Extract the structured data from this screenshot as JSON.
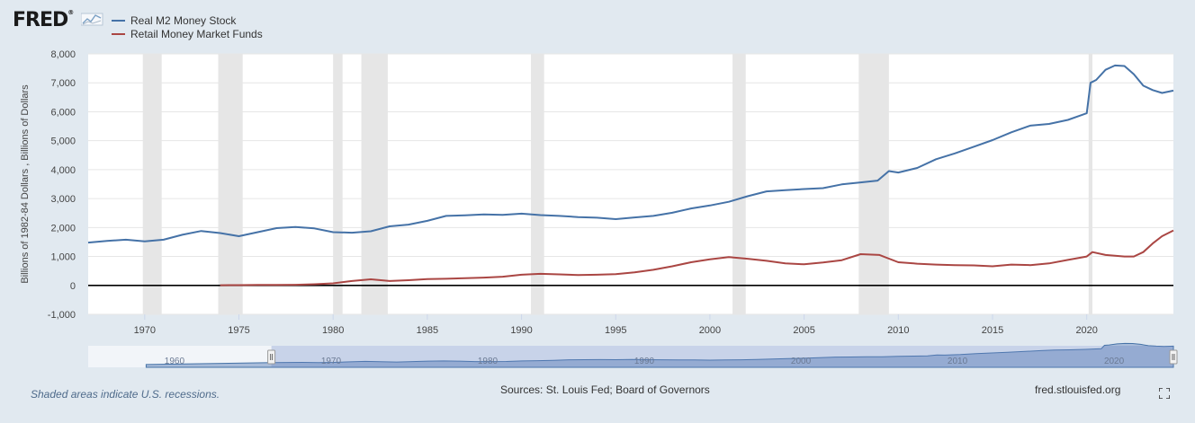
{
  "header": {
    "logo_text": "FRED",
    "logo_mark": "®",
    "logo_icon": "fred-chart-icon"
  },
  "legend": {
    "items": [
      {
        "label": "Real M2 Money Stock",
        "color": "#4572a7"
      },
      {
        "label": "Retail Money Market Funds",
        "color": "#aa4643"
      }
    ]
  },
  "footer": {
    "note": "Shaded areas indicate U.S. recessions.",
    "sources": "Sources: St. Louis Fed; Board of Governors",
    "url": "fred.stlouisfed.org",
    "fullscreen_icon": "fullscreen-icon"
  },
  "chart_data": {
    "type": "line",
    "ylabel": "Billions of 1982-84 Dollars , Billions of Dollars",
    "xlim": [
      1967.0,
      2024.6
    ],
    "ylim": [
      -1000,
      8000
    ],
    "x_ticks": [
      1970,
      1975,
      1980,
      1985,
      1990,
      1995,
      2000,
      2005,
      2010,
      2015,
      2020
    ],
    "y_ticks": [
      -1000,
      0,
      1000,
      2000,
      3000,
      4000,
      5000,
      6000,
      7000,
      8000
    ],
    "y_tick_labels": [
      "-1,000",
      "0",
      "1,000",
      "2,000",
      "3,000",
      "4,000",
      "5,000",
      "6,000",
      "7,000",
      "8,000"
    ],
    "grid": true,
    "legend_position": "top-left",
    "recessions": [
      [
        1969.9,
        1970.9
      ],
      [
        1973.9,
        1975.2
      ],
      [
        1980.0,
        1980.5
      ],
      [
        1981.5,
        1982.9
      ],
      [
        1990.5,
        1991.2
      ],
      [
        2001.2,
        2001.9
      ],
      [
        2007.9,
        2009.5
      ],
      [
        2020.1,
        2020.3
      ]
    ],
    "series": [
      {
        "name": "Real M2 Money Stock",
        "color": "#4572a7",
        "x": [
          1967.0,
          1968,
          1969,
          1970,
          1971,
          1972,
          1973,
          1974,
          1975,
          1976,
          1977,
          1978,
          1979,
          1980,
          1981,
          1982,
          1983,
          1984,
          1985,
          1986,
          1987,
          1988,
          1989,
          1990,
          1991,
          1992,
          1993,
          1994,
          1995,
          1996,
          1997,
          1998,
          1999,
          2000,
          2001,
          2002,
          2003,
          2004,
          2005,
          2006,
          2007,
          2008,
          2008.9,
          2009.5,
          2010,
          2011,
          2012,
          2013,
          2014,
          2015,
          2016,
          2017,
          2018,
          2019,
          2020.0,
          2020.2,
          2020.5,
          2021,
          2021.5,
          2022.0,
          2022.5,
          2023.0,
          2023.5,
          2024.0,
          2024.6
        ],
        "values": [
          1480,
          1540,
          1580,
          1520,
          1580,
          1750,
          1880,
          1810,
          1700,
          1840,
          1980,
          2020,
          1970,
          1840,
          1820,
          1870,
          2040,
          2100,
          2230,
          2400,
          2420,
          2450,
          2440,
          2480,
          2430,
          2400,
          2360,
          2340,
          2290,
          2350,
          2400,
          2510,
          2660,
          2760,
          2890,
          3080,
          3250,
          3290,
          3330,
          3360,
          3490,
          3560,
          3620,
          3950,
          3900,
          4060,
          4360,
          4560,
          4790,
          5020,
          5290,
          5520,
          5580,
          5720,
          5950,
          7000,
          7100,
          7450,
          7600,
          7580,
          7300,
          6900,
          6750,
          6650,
          6730
        ]
      },
      {
        "name": "Retail Money Market Funds",
        "color": "#aa4643",
        "x": [
          1974.0,
          1975,
          1976,
          1977,
          1978,
          1979,
          1980,
          1981,
          1982,
          1983,
          1984,
          1985,
          1986,
          1987,
          1988,
          1989,
          1990,
          1991,
          1992,
          1993,
          1994,
          1995,
          1996,
          1997,
          1998,
          1999,
          2000,
          2001,
          2002,
          2003,
          2004,
          2005,
          2006,
          2007,
          2008,
          2009,
          2010,
          2011,
          2012,
          2013,
          2014,
          2015,
          2016,
          2017,
          2018,
          2019,
          2020.0,
          2020.3,
          2021,
          2022,
          2022.5,
          2023,
          2023.5,
          2024.0,
          2024.6
        ],
        "values": [
          5,
          10,
          15,
          15,
          20,
          40,
          70,
          150,
          210,
          150,
          180,
          220,
          230,
          250,
          270,
          300,
          370,
          400,
          380,
          360,
          370,
          390,
          450,
          540,
          660,
          800,
          900,
          980,
          920,
          850,
          760,
          730,
          790,
          870,
          1080,
          1050,
          800,
          750,
          720,
          700,
          690,
          660,
          720,
          700,
          760,
          880,
          1000,
          1150,
          1050,
          1000,
          1000,
          1150,
          1450,
          1700,
          1900
        ]
      }
    ]
  },
  "navigator": {
    "tick_labels": [
      "1960",
      "1970",
      "1980",
      "1990",
      "2000",
      "2010",
      "2020"
    ]
  }
}
